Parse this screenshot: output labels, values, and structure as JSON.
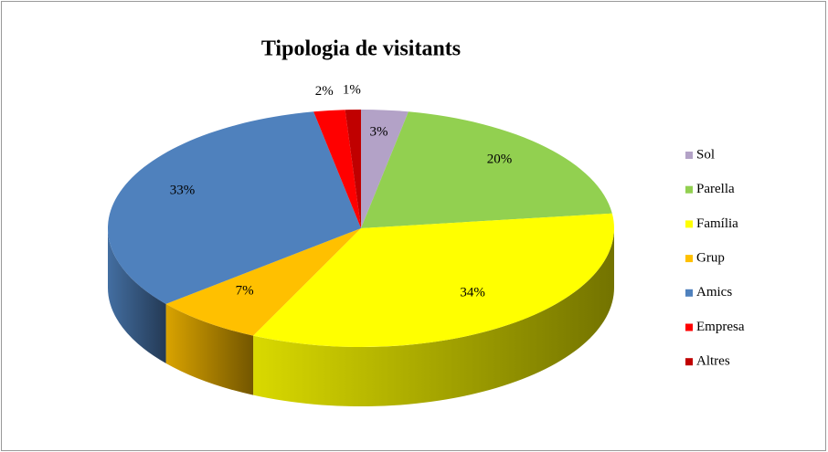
{
  "chart_data": {
    "type": "pie3d",
    "title": "Tipologia de visitants",
    "categories": [
      "Sol",
      "Parella",
      "Família",
      "Grup",
      "Amics",
      "Empresa",
      "Altres"
    ],
    "values": [
      3,
      20,
      34,
      7,
      33,
      2,
      1
    ],
    "value_labels": [
      "3%",
      "20%",
      "34%",
      "7%",
      "33%",
      "2%",
      "1%"
    ],
    "colors": [
      "#b3a2c7",
      "#92d050",
      "#ffff00",
      "#ffc000",
      "#4f81bd",
      "#ff0000",
      "#c00000"
    ],
    "legend": "right"
  }
}
